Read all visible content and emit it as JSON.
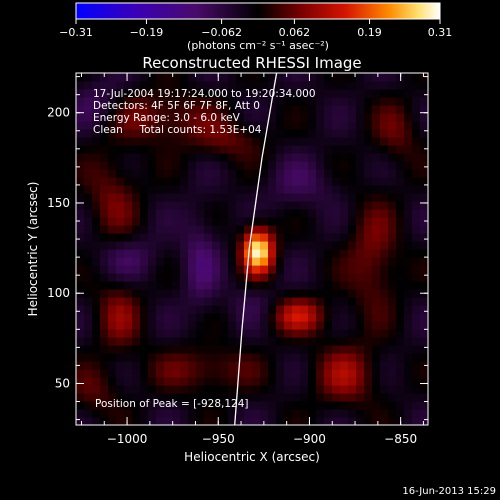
{
  "chart_data": {
    "type": "heatmap",
    "title": "Reconstructed RHESSI Image",
    "xlabel": "Heliocentric X (arcsec)",
    "ylabel": "Heliocentric Y (arcsec)",
    "xlim": [
      -1028,
      -835
    ],
    "ylim": [
      27,
      222
    ],
    "x_ticks": [
      -1000,
      -950,
      -900,
      -850
    ],
    "y_ticks": [
      50,
      100,
      150,
      200
    ],
    "colorbar": {
      "min": -0.31,
      "max": 0.31,
      "ticks": [
        -0.31,
        -0.19,
        -0.062,
        0.062,
        0.19,
        0.31
      ],
      "tick_labels": [
        "−0.31",
        "−0.19",
        "−0.062",
        "0.062",
        "0.19",
        "0.31"
      ],
      "unit_label": "(photons cm⁻² s⁻¹ asec⁻²)"
    },
    "info_lines": [
      "17-Jul-2004 19:17:24.000 to 19:20:34.000",
      "Detectors: 4F 5F 6F 7F 8F, Att 0",
      "Energy Range: 3.0 - 6.0 keV",
      "Clean     Total counts: 1.53E+04"
    ],
    "peak_label": "Position of Peak = [-928,124]",
    "peak": {
      "x": -928,
      "y": 124,
      "value": 0.31
    },
    "limb": [
      [
        -941,
        27
      ],
      [
        -937,
        80
      ],
      [
        -933,
        125
      ],
      [
        -926,
        175
      ],
      [
        -918,
        222
      ]
    ],
    "sources": [
      {
        "x": -928,
        "y": 124,
        "sx": 6,
        "sy": 9,
        "amp": 0.31
      },
      {
        "x": -906,
        "y": 88,
        "sx": 11,
        "sy": 7,
        "amp": 0.14
      },
      {
        "x": -1005,
        "y": 88,
        "sx": 9,
        "sy": 14,
        "amp": 0.09
      },
      {
        "x": -983,
        "y": 198,
        "sx": 20,
        "sy": 10,
        "amp": 0.09
      },
      {
        "x": -1008,
        "y": 153,
        "sx": 10,
        "sy": 18,
        "amp": 0.08
      },
      {
        "x": -865,
        "y": 120,
        "sx": 10,
        "sy": 22,
        "amp": 0.09
      },
      {
        "x": -958,
        "y": 58,
        "sx": 20,
        "sy": 9,
        "amp": 0.08
      },
      {
        "x": -880,
        "y": 55,
        "sx": 12,
        "sy": 12,
        "amp": 0.11
      },
      {
        "x": -945,
        "y": 185,
        "sx": 14,
        "sy": 8,
        "amp": 0.07
      },
      {
        "x": -1018,
        "y": 45,
        "sx": 10,
        "sy": 10,
        "amp": 0.06
      },
      {
        "x": -852,
        "y": 190,
        "sx": 9,
        "sy": 12,
        "amp": 0.07
      },
      {
        "x": -960,
        "y": 118,
        "sx": 7,
        "sy": 20,
        "amp": -0.07
      },
      {
        "x": -1000,
        "y": 120,
        "sx": 13,
        "sy": 9,
        "amp": -0.06
      },
      {
        "x": -905,
        "y": 160,
        "sx": 14,
        "sy": 10,
        "amp": -0.05
      },
      {
        "x": -1015,
        "y": 205,
        "sx": 10,
        "sy": 10,
        "amp": -0.06
      },
      {
        "x": -930,
        "y": 95,
        "sx": 10,
        "sy": 8,
        "amp": -0.04
      }
    ]
  },
  "footer": {
    "timestamp": "16-Jun-2013 15:29"
  }
}
